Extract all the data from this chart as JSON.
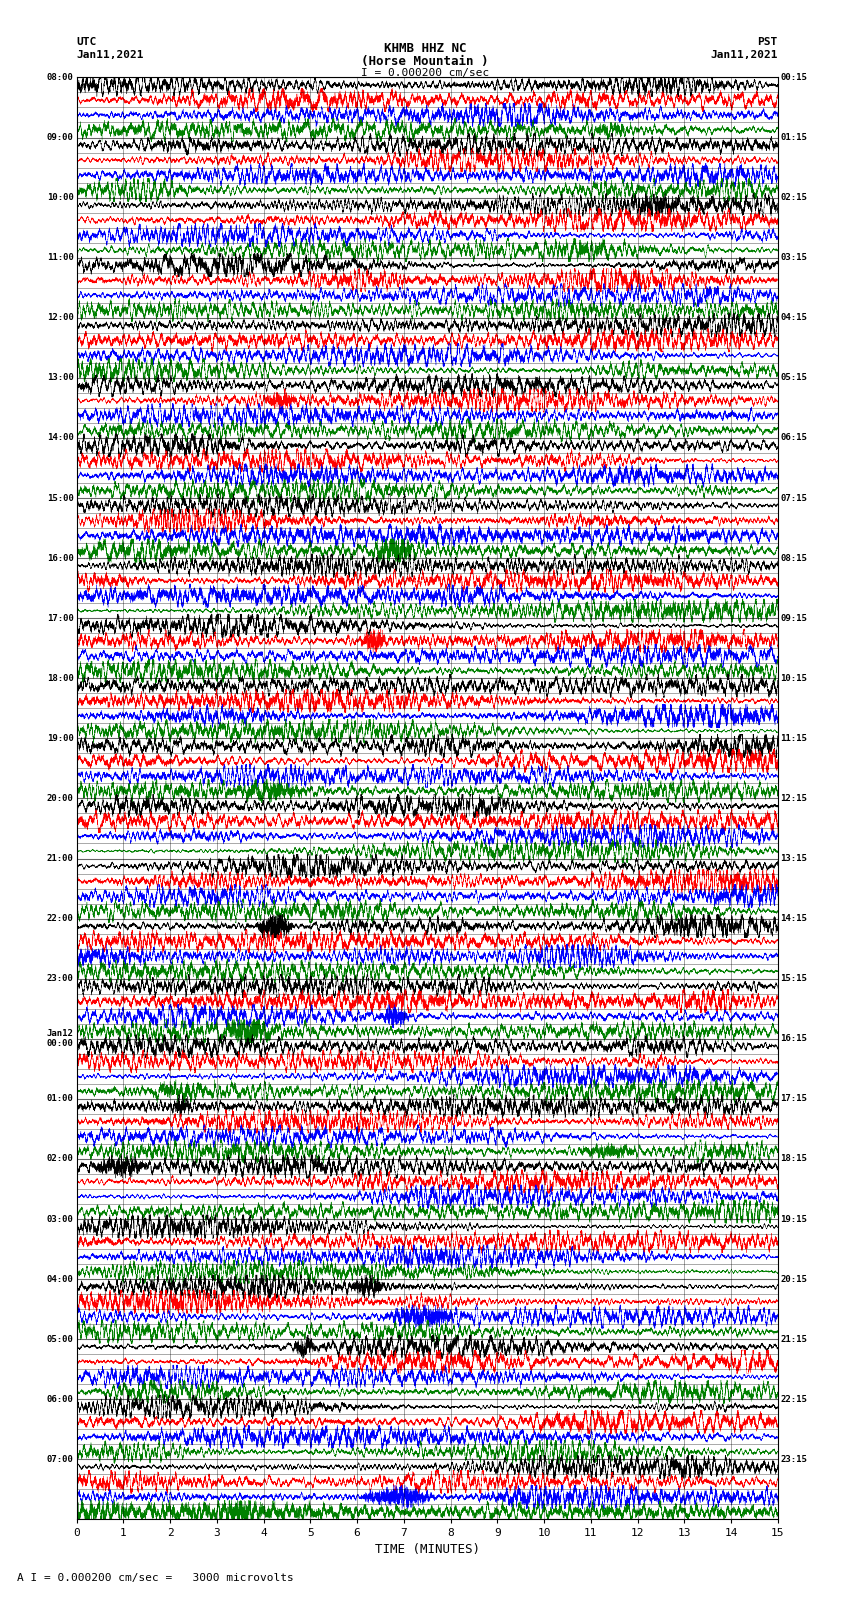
{
  "title_line1": "KHMB HHZ NC",
  "title_line2": "(Horse Mountain )",
  "scale_label": "I = 0.000200 cm/sec",
  "label_utc": "UTC",
  "label_utc_date": "Jan11,2021",
  "label_pst": "PST",
  "label_pst_date": "Jan11,2021",
  "footer_scale": "A I = 0.000200 cm/sec =   3000 microvolts",
  "xlabel": "TIME (MINUTES)",
  "xlim": [
    0,
    15
  ],
  "xticks": [
    0,
    1,
    2,
    3,
    4,
    5,
    6,
    7,
    8,
    9,
    10,
    11,
    12,
    13,
    14,
    15
  ],
  "left_times": [
    "08:00",
    "09:00",
    "10:00",
    "11:00",
    "12:00",
    "13:00",
    "14:00",
    "15:00",
    "16:00",
    "17:00",
    "18:00",
    "19:00",
    "20:00",
    "21:00",
    "22:00",
    "23:00",
    "Jan12\n00:00",
    "01:00",
    "02:00",
    "03:00",
    "04:00",
    "05:00",
    "06:00",
    "07:00"
  ],
  "right_times": [
    "00:15",
    "01:15",
    "02:15",
    "03:15",
    "04:15",
    "05:15",
    "06:15",
    "07:15",
    "08:15",
    "09:15",
    "10:15",
    "11:15",
    "12:15",
    "13:15",
    "14:15",
    "15:15",
    "16:15",
    "17:15",
    "18:15",
    "19:15",
    "20:15",
    "21:15",
    "22:15",
    "23:15"
  ],
  "n_hour_labels": 24,
  "colors": [
    "black",
    "red",
    "blue",
    "green"
  ],
  "fig_width": 8.5,
  "fig_height": 16.13,
  "bg_color": "white",
  "seed": 42
}
